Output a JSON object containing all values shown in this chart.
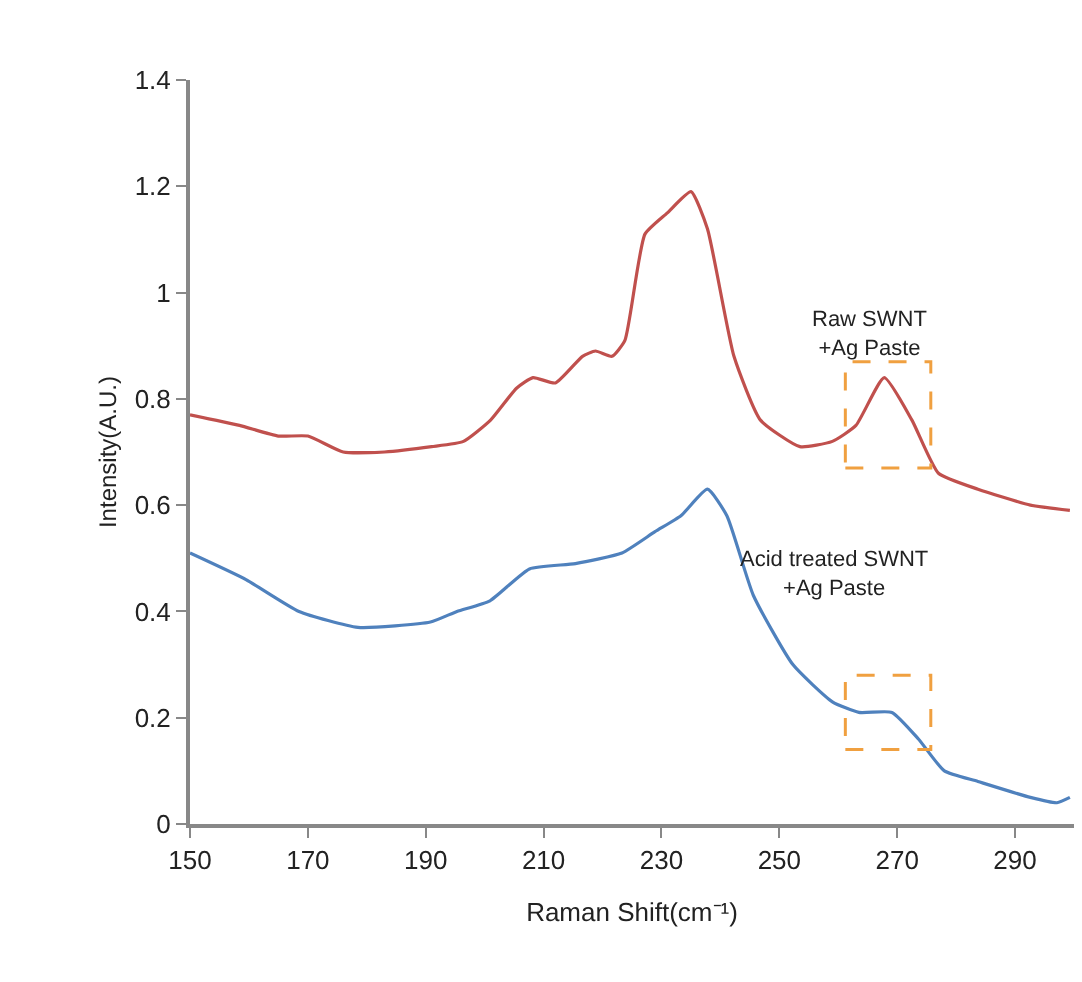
{
  "chart_data": {
    "type": "line",
    "xlabel": "Raman Shift(cm⁻¹)",
    "ylabel": "Intensity(A.U.)",
    "xlim": [
      150,
      300
    ],
    "xticks": [
      150,
      170,
      190,
      210,
      230,
      250,
      270,
      290
    ],
    "ylim": [
      0,
      1.4
    ],
    "yticks": [
      0,
      {
        "value": 0.2,
        "label": "0.2"
      },
      {
        "value": 0.4,
        "label": "0.4"
      },
      {
        "value": 0.6,
        "label": "0.6"
      },
      {
        "value": 0.8,
        "label": "0.8"
      },
      1,
      {
        "value": 1.2,
        "label": "1.2"
      },
      {
        "value": 1.4,
        "label": "1.4"
      }
    ],
    "marker": "none",
    "line_style": "solid",
    "series": [
      {
        "color": "#c0504d",
        "x": [
          150,
          158.4,
          165,
          170,
          176,
          183,
          191,
          196.4,
          201,
          205.4,
          208.2,
          212,
          216.6,
          218.8,
          221.6,
          223.8,
          227.2,
          231,
          235,
          237.8,
          242.3,
          246.8,
          253.5,
          259,
          263,
          267.8,
          272.5,
          277,
          283.7,
          292.6,
          299.3
        ],
        "values": [
          0.77,
          0.75,
          0.73,
          0.73,
          0.7,
          0.7,
          0.71,
          0.72,
          0.76,
          0.82,
          0.84,
          0.83,
          0.88,
          0.89,
          0.88,
          0.91,
          1.11,
          1.15,
          1.19,
          1.12,
          0.88,
          0.76,
          0.71,
          0.72,
          0.75,
          0.84,
          0.76,
          0.66,
          0.63,
          0.6,
          0.59
        ]
      },
      {
        "color": "#4f81bd",
        "x": [
          150,
          159.5,
          168.5,
          178.5,
          190.8,
          195.3,
          200.9,
          207.6,
          215.4,
          223.3,
          228.9,
          233.3,
          237.8,
          241.1,
          245.6,
          252.3,
          259,
          263.5,
          269.1,
          273.6,
          278,
          283.7,
          292.6,
          297.1,
          299.3
        ],
        "values": [
          0.51,
          0.46,
          0.4,
          0.37,
          0.38,
          0.4,
          0.42,
          0.48,
          0.49,
          0.51,
          0.55,
          0.58,
          0.63,
          0.58,
          0.43,
          0.3,
          0.23,
          0.21,
          0.21,
          0.16,
          0.1,
          0.08,
          0.05,
          0.04,
          0.05
        ]
      }
    ],
    "annotations": [
      "Raw SWNT\n+Ag Paste",
      "Acid treated SWNT\n+Ag Paste"
    ]
  }
}
